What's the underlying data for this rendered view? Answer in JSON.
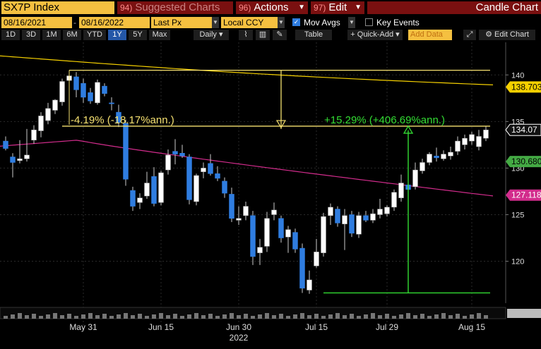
{
  "toolbar": {
    "ticker": "SX7P Index",
    "suggested_num": "94)",
    "suggested_label": "Suggested Charts",
    "actions_num": "96)",
    "actions_label": "Actions",
    "edit_num": "97)",
    "edit_label": "Edit",
    "chart_title": "Candle Chart"
  },
  "params": {
    "start_date": "08/16/2021",
    "end_date": "08/16/2022",
    "price_field": "Last Px",
    "currency": "Local CCY",
    "mov_avgs_label": "Mov Avgs",
    "key_events_label": "Key Events"
  },
  "ranges": [
    "1D",
    "3D",
    "1M",
    "6M",
    "YTD",
    "1Y",
    "5Y",
    "Max"
  ],
  "selected_range": "1Y",
  "controls": {
    "periodicity": "Daily",
    "table_label": "Table",
    "quick_add_label": "+ Quick-Add",
    "add_data_placeholder": "Add Data",
    "edit_chart_label": "Edit Chart"
  },
  "colors": {
    "price_box": "#ffffff",
    "ma_yellow": "#f5d000",
    "ma_green": "#44aa44",
    "ma_magenta": "#d22c8c",
    "candle_up": "#ffffff",
    "candle_down": "#2f7de0",
    "annotation_yellow": "#f5e070",
    "annotation_green": "#33dd33"
  },
  "chart_data": {
    "type": "candlestick",
    "ylim": [
      115.5,
      143.5
    ],
    "y_ticks": [
      120,
      125,
      130,
      135,
      140
    ],
    "x_labels": [
      "May 31",
      "Jun 15",
      "Jun 30",
      "Jul 15",
      "Jul 29",
      "Aug 15"
    ],
    "year_label": "2022",
    "last_price_label": "134.07",
    "ma_labels": [
      {
        "name": "MA yellow",
        "value": "138.703"
      },
      {
        "name": "MA green",
        "value": "130.680"
      },
      {
        "name": "MA magenta",
        "value": "127.118"
      }
    ],
    "annotations": {
      "drop": "-4.19% (-18.17%ann.)",
      "rise": "+15.29% (+406.69%ann.)"
    },
    "candles": [
      {
        "o": 132.9,
        "h": 133.4,
        "l": 131.9,
        "c": 132.1
      },
      {
        "o": 131.2,
        "h": 131.6,
        "l": 129.0,
        "c": 130.6
      },
      {
        "o": 130.8,
        "h": 133.0,
        "l": 130.5,
        "c": 131.0
      },
      {
        "o": 131.0,
        "h": 134.2,
        "l": 130.7,
        "c": 131.4
      },
      {
        "o": 133.0,
        "h": 134.6,
        "l": 132.6,
        "c": 134.1
      },
      {
        "o": 134.0,
        "h": 136.0,
        "l": 133.3,
        "c": 135.6
      },
      {
        "o": 135.1,
        "h": 137.0,
        "l": 134.7,
        "c": 136.4
      },
      {
        "o": 136.2,
        "h": 137.4,
        "l": 135.8,
        "c": 137.3
      },
      {
        "o": 137.1,
        "h": 139.6,
        "l": 136.7,
        "c": 139.3
      },
      {
        "o": 139.4,
        "h": 140.5,
        "l": 138.9,
        "c": 139.9
      },
      {
        "o": 139.8,
        "h": 140.3,
        "l": 137.6,
        "c": 138.4
      },
      {
        "o": 139.1,
        "h": 139.6,
        "l": 137.0,
        "c": 137.6
      },
      {
        "o": 138.1,
        "h": 138.6,
        "l": 136.9,
        "c": 137.2
      },
      {
        "o": 137.0,
        "h": 139.5,
        "l": 136.8,
        "c": 139.2
      },
      {
        "o": 138.8,
        "h": 139.1,
        "l": 137.7,
        "c": 138.0
      },
      {
        "o": 137.0,
        "h": 137.6,
        "l": 136.2,
        "c": 136.9
      },
      {
        "o": 136.0,
        "h": 136.8,
        "l": 134.4,
        "c": 134.9
      },
      {
        "o": 134.8,
        "h": 135.2,
        "l": 128.1,
        "c": 128.8
      },
      {
        "o": 127.6,
        "h": 128.0,
        "l": 125.4,
        "c": 125.9
      },
      {
        "o": 126.3,
        "h": 127.3,
        "l": 125.6,
        "c": 126.8
      },
      {
        "o": 127.0,
        "h": 129.6,
        "l": 126.7,
        "c": 128.4
      },
      {
        "o": 129.1,
        "h": 130.1,
        "l": 125.9,
        "c": 126.2
      },
      {
        "o": 126.3,
        "h": 129.7,
        "l": 126.0,
        "c": 129.5
      },
      {
        "o": 129.8,
        "h": 132.0,
        "l": 129.3,
        "c": 131.4
      },
      {
        "o": 131.8,
        "h": 133.1,
        "l": 130.4,
        "c": 131.5
      },
      {
        "o": 131.6,
        "h": 132.5,
        "l": 131.1,
        "c": 131.3
      },
      {
        "o": 131.2,
        "h": 131.5,
        "l": 126.1,
        "c": 126.6
      },
      {
        "o": 126.4,
        "h": 129.4,
        "l": 126.0,
        "c": 129.2
      },
      {
        "o": 129.6,
        "h": 130.6,
        "l": 128.9,
        "c": 130.0
      },
      {
        "o": 130.5,
        "h": 131.5,
        "l": 129.2,
        "c": 129.4
      },
      {
        "o": 129.4,
        "h": 130.2,
        "l": 128.6,
        "c": 128.9
      },
      {
        "o": 128.6,
        "h": 129.0,
        "l": 126.8,
        "c": 127.3
      },
      {
        "o": 127.2,
        "h": 127.9,
        "l": 124.2,
        "c": 124.6
      },
      {
        "o": 124.4,
        "h": 125.9,
        "l": 123.9,
        "c": 124.6
      },
      {
        "o": 124.9,
        "h": 126.4,
        "l": 124.4,
        "c": 125.9
      },
      {
        "o": 124.9,
        "h": 125.4,
        "l": 119.6,
        "c": 120.5
      },
      {
        "o": 120.9,
        "h": 122.4,
        "l": 119.6,
        "c": 121.5
      },
      {
        "o": 121.6,
        "h": 125.3,
        "l": 121.0,
        "c": 124.6
      },
      {
        "o": 125.0,
        "h": 126.3,
        "l": 124.4,
        "c": 125.5
      },
      {
        "o": 124.6,
        "h": 124.9,
        "l": 122.0,
        "c": 122.5
      },
      {
        "o": 122.6,
        "h": 123.8,
        "l": 120.9,
        "c": 123.4
      },
      {
        "o": 123.1,
        "h": 123.5,
        "l": 120.9,
        "c": 121.3
      },
      {
        "o": 121.4,
        "h": 121.9,
        "l": 116.6,
        "c": 117.1
      },
      {
        "o": 116.9,
        "h": 119.0,
        "l": 116.5,
        "c": 118.0
      },
      {
        "o": 119.5,
        "h": 122.4,
        "l": 119.3,
        "c": 121.0
      },
      {
        "o": 120.9,
        "h": 125.2,
        "l": 120.5,
        "c": 124.8
      },
      {
        "o": 124.9,
        "h": 126.2,
        "l": 123.9,
        "c": 125.8
      },
      {
        "o": 125.6,
        "h": 125.9,
        "l": 123.7,
        "c": 124.1
      },
      {
        "o": 124.0,
        "h": 125.6,
        "l": 121.2,
        "c": 124.9
      },
      {
        "o": 125.0,
        "h": 125.4,
        "l": 122.6,
        "c": 123.0
      },
      {
        "o": 122.9,
        "h": 125.3,
        "l": 122.5,
        "c": 124.9
      },
      {
        "o": 124.9,
        "h": 125.4,
        "l": 124.2,
        "c": 124.4
      },
      {
        "o": 124.4,
        "h": 125.6,
        "l": 124.1,
        "c": 125.1
      },
      {
        "o": 125.0,
        "h": 126.7,
        "l": 124.6,
        "c": 125.6
      },
      {
        "o": 125.1,
        "h": 126.0,
        "l": 124.8,
        "c": 125.8
      },
      {
        "o": 125.8,
        "h": 127.7,
        "l": 125.4,
        "c": 127.4
      },
      {
        "o": 126.8,
        "h": 129.3,
        "l": 126.4,
        "c": 128.4
      },
      {
        "o": 128.2,
        "h": 128.9,
        "l": 127.3,
        "c": 127.7
      },
      {
        "o": 128.0,
        "h": 130.6,
        "l": 127.7,
        "c": 129.8
      },
      {
        "o": 129.7,
        "h": 131.0,
        "l": 129.4,
        "c": 130.6
      },
      {
        "o": 130.6,
        "h": 131.7,
        "l": 130.3,
        "c": 131.5
      },
      {
        "o": 131.3,
        "h": 132.2,
        "l": 130.7,
        "c": 131.1
      },
      {
        "o": 131.0,
        "h": 131.9,
        "l": 130.8,
        "c": 131.5
      },
      {
        "o": 131.3,
        "h": 132.3,
        "l": 130.9,
        "c": 131.7
      },
      {
        "o": 131.8,
        "h": 133.4,
        "l": 131.4,
        "c": 132.9
      },
      {
        "o": 132.5,
        "h": 133.6,
        "l": 132.0,
        "c": 133.2
      },
      {
        "o": 132.9,
        "h": 133.9,
        "l": 132.5,
        "c": 133.6
      },
      {
        "o": 132.3,
        "h": 134.1,
        "l": 131.9,
        "c": 133.4
      },
      {
        "o": 133.2,
        "h": 134.5,
        "l": 132.9,
        "c": 134.1
      }
    ]
  }
}
